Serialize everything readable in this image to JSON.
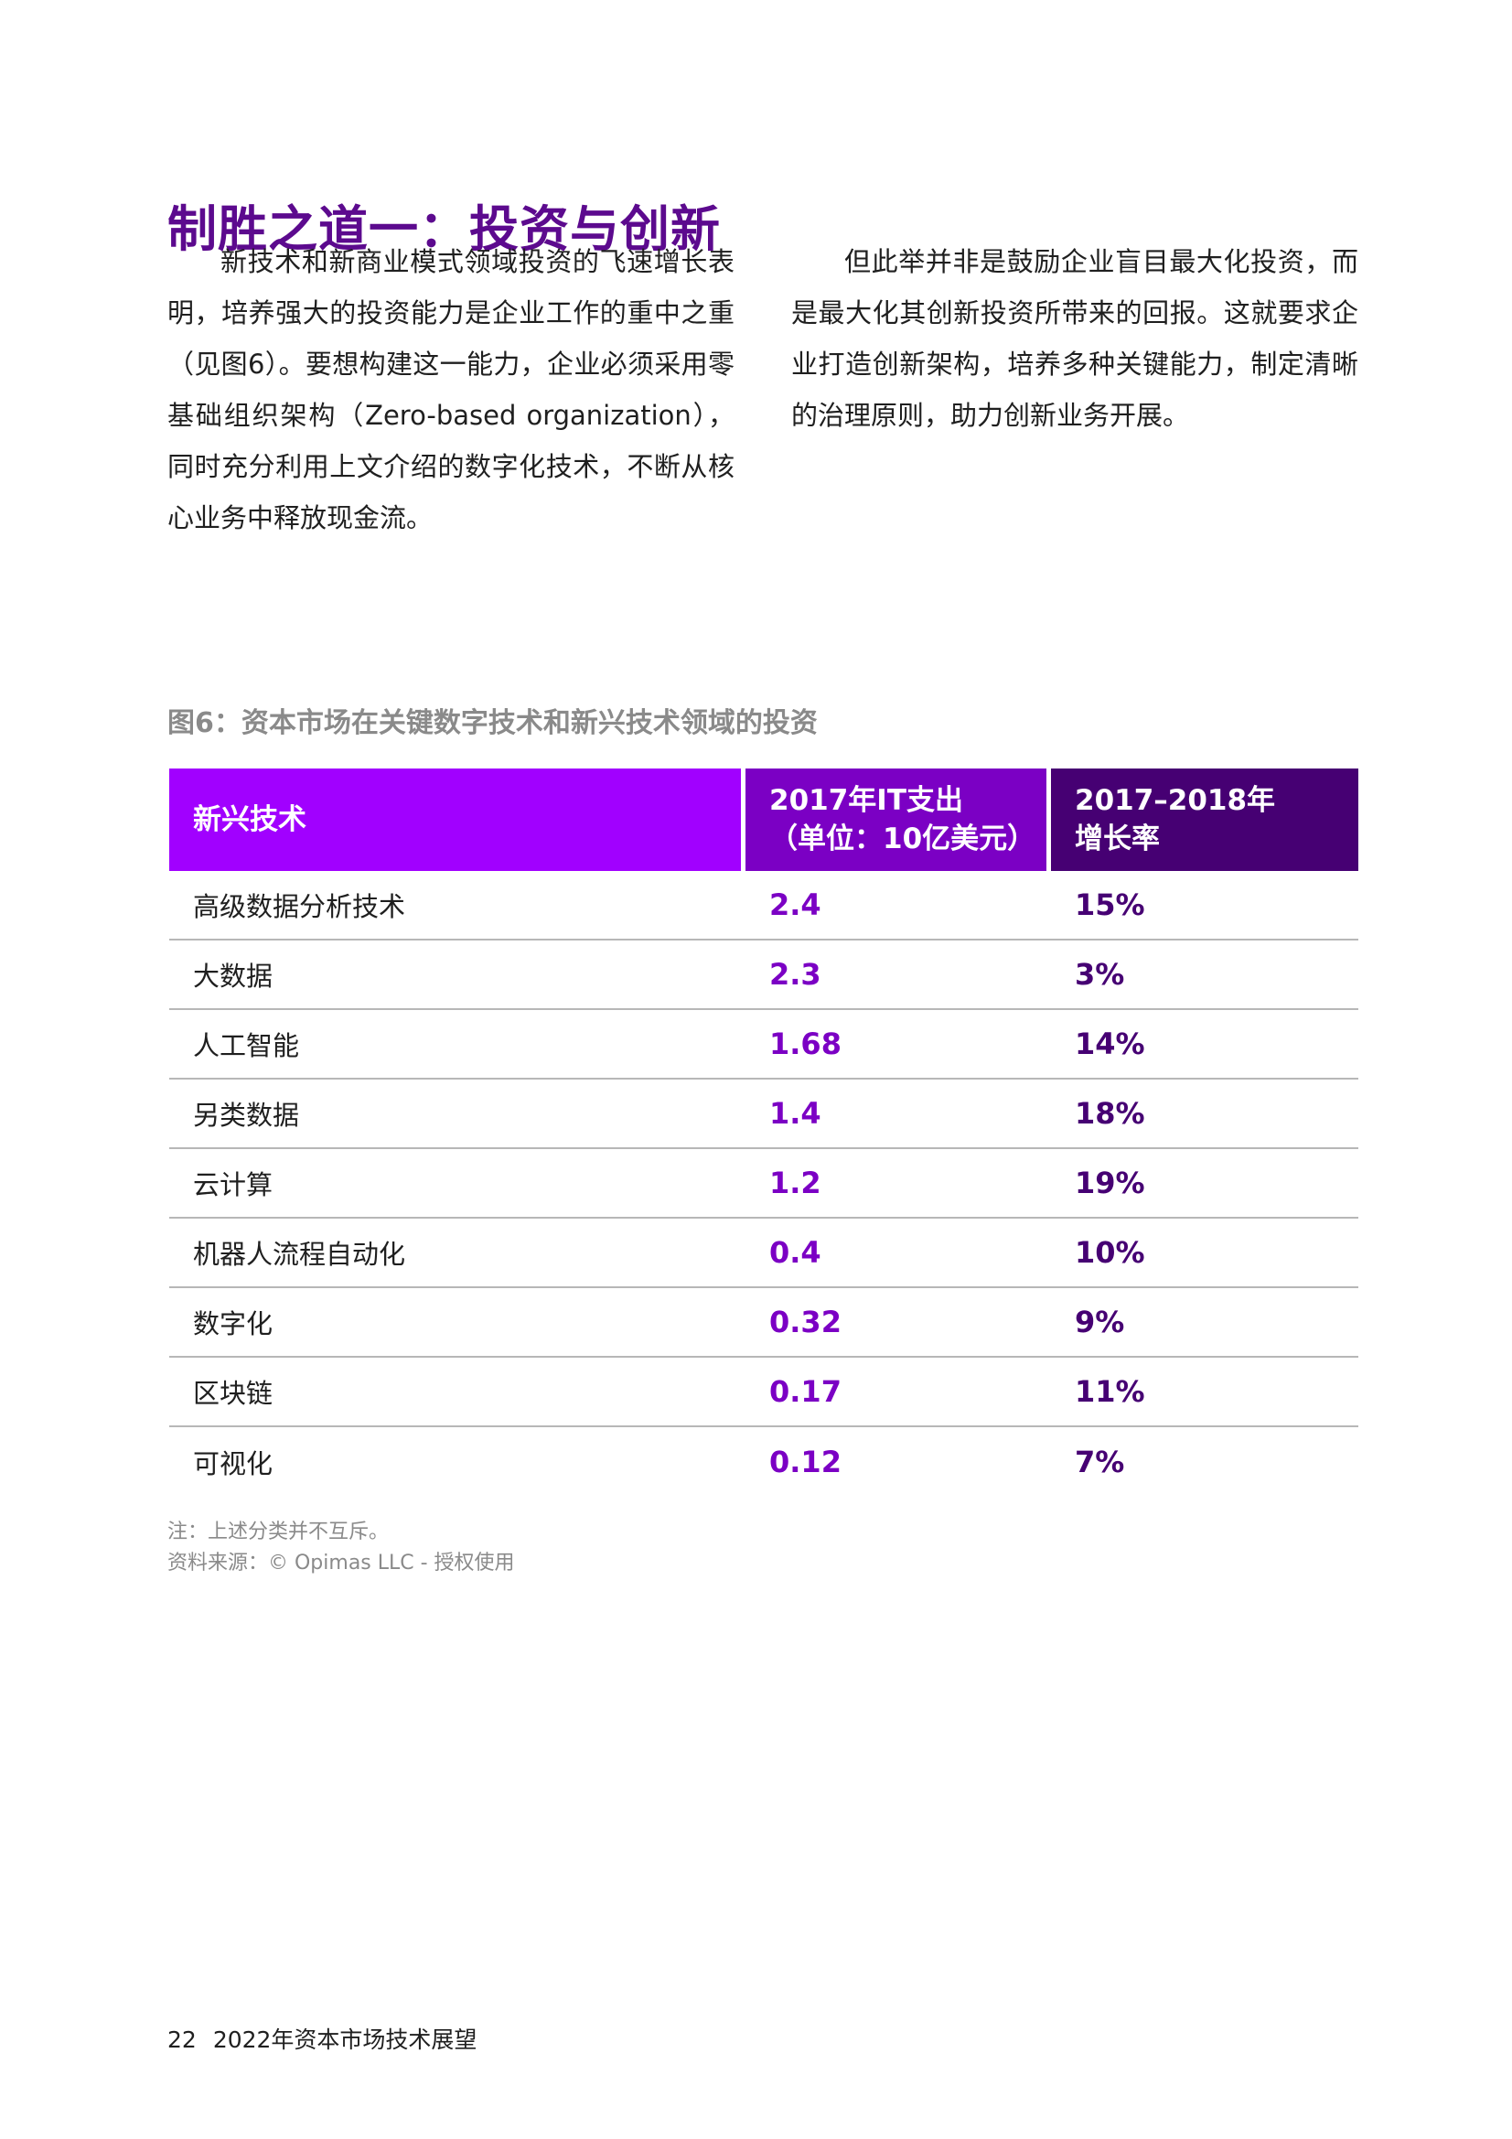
{
  "section_title": "制胜之道一：投资与创新",
  "paragraphs": {
    "left": "新技术和新商业模式领域投资的飞速增长表明，培养强大的投资能力是企业工作的重中之重（见图6）。要想构建这一能力，企业必须采用零基础组织架构（Zero-based organization），同时充分利用上文介绍的数字化技术，不断从核心业务中释放现金流。",
    "right": "但此举并非是鼓励企业盲目最大化投资，而是最大化其创新投资所带来的回报。这就要求企业打造创新架构，培养多种关键能力，制定清晰的治理原则，助力创新业务开展。"
  },
  "figure": {
    "title": "图6：资本市场在关键数字技术和新兴技术领域的投资",
    "headers": {
      "col1": "新兴技术",
      "col2_line1": "2017年IT支出",
      "col2_line2": "（单位：10亿美元）",
      "col3_line1": "2017–2018年",
      "col3_line2": "增长率"
    },
    "colors": {
      "header1": "#a100ff",
      "header2": "#7b00c4",
      "header3": "#460073"
    },
    "rows": [
      {
        "name": "高级数据分析技术",
        "spend": "2.4",
        "growth": "15%"
      },
      {
        "name": "大数据",
        "spend": "2.3",
        "growth": "3%"
      },
      {
        "name": "人工智能",
        "spend": "1.68",
        "growth": "14%"
      },
      {
        "name": "另类数据",
        "spend": "1.4",
        "growth": "18%"
      },
      {
        "name": "云计算",
        "spend": "1.2",
        "growth": "19%"
      },
      {
        "name": "机器人流程自动化",
        "spend": "0.4",
        "growth": "10%"
      },
      {
        "name": "数字化",
        "spend": "0.32",
        "growth": "9%"
      },
      {
        "name": "区块链",
        "spend": "0.17",
        "growth": "11%"
      },
      {
        "name": "可视化",
        "spend": "0.12",
        "growth": "7%"
      }
    ],
    "note": "注：上述分类并不互斥。",
    "source": "资料来源：© Opimas LLC - 授权使用"
  },
  "footer": {
    "page_number": "22",
    "publication": "2022年资本市场技术展望"
  }
}
